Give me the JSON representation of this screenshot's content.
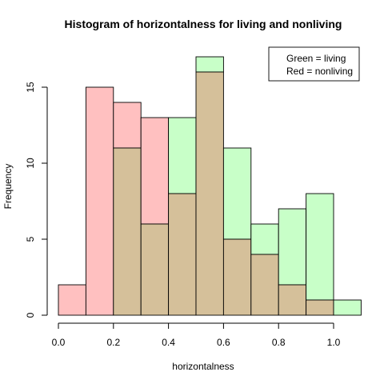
{
  "chart_data": {
    "type": "bar",
    "title": "Histogram of  horizontalness for living and nonliving",
    "xlabel": "horizontalness",
    "ylabel": "Frequency",
    "xlim": [
      0,
      1.1
    ],
    "ylim": [
      0,
      17
    ],
    "bin_width": 0.1,
    "x_ticks": [
      "0.0",
      "0.2",
      "0.4",
      "0.6",
      "0.8",
      "1.0"
    ],
    "y_ticks": [
      "0",
      "5",
      "10",
      "15"
    ],
    "bin_starts": [
      0.0,
      0.1,
      0.2,
      0.3,
      0.4,
      0.5,
      0.6,
      0.7,
      0.8,
      0.9,
      1.0
    ],
    "series": [
      {
        "name": "nonliving",
        "color": "#FFC0C0",
        "values": [
          2,
          15,
          14,
          13,
          8,
          16,
          5,
          4,
          2,
          1,
          0
        ]
      },
      {
        "name": "living",
        "color": "#C8FFC8",
        "values": [
          0,
          0,
          11,
          6,
          13,
          17,
          11,
          6,
          7,
          8,
          1
        ]
      }
    ],
    "overlap_color": "#D5C09A",
    "grid": false,
    "legend": {
      "placement": "top-right",
      "lines": [
        "Green = living",
        "Red =  nonliving"
      ]
    }
  }
}
